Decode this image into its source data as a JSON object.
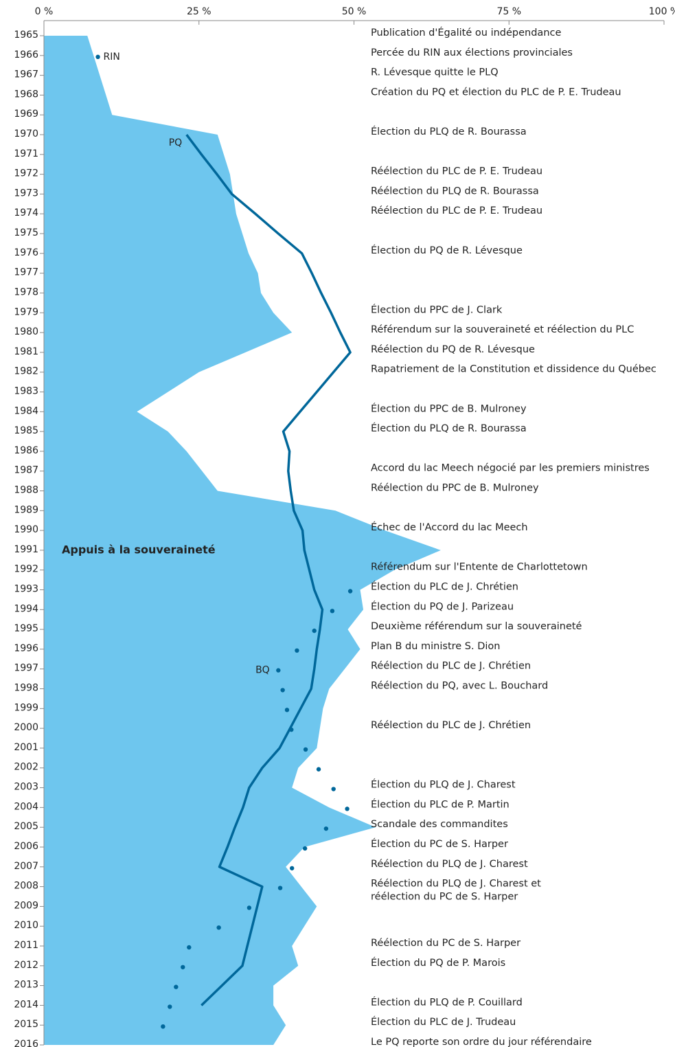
{
  "chart_data": {
    "type": "area",
    "orientation": "horizontal",
    "xlim": [
      0,
      100
    ],
    "xticks": [
      {
        "value": 0,
        "label": "0 %"
      },
      {
        "value": 25,
        "label": "25 %"
      },
      {
        "value": 50,
        "label": "50 %"
      },
      {
        "value": 75,
        "label": "75 %"
      },
      {
        "value": 100,
        "label": "100 %"
      }
    ],
    "ylim": [
      1965,
      2016
    ],
    "y": [
      1965,
      1966,
      1967,
      1968,
      1969,
      1970,
      1971,
      1972,
      1973,
      1974,
      1975,
      1976,
      1977,
      1978,
      1979,
      1980,
      1981,
      1982,
      1983,
      1984,
      1985,
      1986,
      1987,
      1988,
      1989,
      1990,
      1991,
      1992,
      1993,
      1994,
      1995,
      1996,
      1997,
      1998,
      1999,
      2000,
      2001,
      2002,
      2003,
      2004,
      2005,
      2006,
      2007,
      2008,
      2009,
      2010,
      2011,
      2012,
      2013,
      2014,
      2015,
      2016
    ],
    "yticks": [
      1965,
      1966,
      1967,
      1968,
      1969,
      1970,
      1971,
      1972,
      1973,
      1974,
      1975,
      1976,
      1977,
      1978,
      1979,
      1980,
      1981,
      1982,
      1983,
      1984,
      1985,
      1986,
      1987,
      1988,
      1989,
      1990,
      1991,
      1992,
      1993,
      1994,
      1995,
      1996,
      1997,
      1998,
      1999,
      2000,
      2001,
      2002,
      2003,
      2004,
      2005,
      2006,
      2007,
      2008,
      2009,
      2010,
      2011,
      2012,
      2013,
      2014,
      2015,
      2016
    ],
    "series": [
      {
        "name": "Appuis à la souveraineté",
        "kind": "area",
        "color": "#6ec6ee",
        "label_year": 1991,
        "values": [
          7,
          8,
          9,
          10,
          11,
          28,
          29,
          30,
          30.5,
          31,
          32,
          33,
          34.5,
          35,
          37,
          40,
          32.5,
          25,
          20,
          15,
          20,
          23,
          25.5,
          28,
          47,
          55,
          64,
          56.5,
          51,
          51.5,
          49,
          51,
          48.5,
          46,
          45,
          44.5,
          44,
          41,
          40,
          46,
          53.5,
          42,
          39,
          41.5,
          44,
          42,
          40,
          41,
          37,
          37,
          39,
          37
        ]
      },
      {
        "name": "PQ",
        "kind": "line",
        "color": "#00679a",
        "values": [
          null,
          null,
          null,
          null,
          null,
          23,
          25.4,
          27.9,
          30.3,
          34.1,
          37.8,
          41.6,
          43.2,
          44.7,
          46.3,
          47.8,
          49.4,
          46.7,
          44,
          41.3,
          38.6,
          39.6,
          39.4,
          39.8,
          40.3,
          41.7,
          42,
          42.8,
          43.6,
          44.9,
          44.5,
          44,
          43.6,
          43.1,
          41.4,
          39.7,
          38,
          35.2,
          33.1,
          32.1,
          30.8,
          29.6,
          28.3,
          35.2,
          34.4,
          33.6,
          32.8,
          32,
          28.7,
          25.4,
          null,
          null
        ]
      },
      {
        "name": "RIN",
        "kind": "dots",
        "color": "#00679a",
        "values": [
          null,
          8.7,
          null,
          null,
          null,
          null,
          null,
          null,
          null,
          null,
          null,
          null,
          null,
          null,
          null,
          null,
          null,
          null,
          null,
          null,
          null,
          null,
          null,
          null,
          null,
          null,
          null,
          null,
          null,
          null,
          null,
          null,
          null,
          null,
          null,
          null,
          null,
          null,
          null,
          null,
          null,
          null,
          null,
          null,
          null,
          null,
          null,
          null,
          null,
          null,
          null,
          null
        ]
      },
      {
        "name": "BQ",
        "kind": "dots",
        "color": "#00679a",
        "values": [
          null,
          null,
          null,
          null,
          null,
          null,
          null,
          null,
          null,
          null,
          null,
          null,
          null,
          null,
          null,
          null,
          null,
          null,
          null,
          null,
          null,
          null,
          null,
          null,
          null,
          null,
          null,
          null,
          49.4,
          46.5,
          43.6,
          40.8,
          37.8,
          38.5,
          39.2,
          39.9,
          42.2,
          44.3,
          46.7,
          48.9,
          45.5,
          42.1,
          40,
          38.1,
          33.1,
          28.2,
          23.4,
          22.4,
          21.3,
          20.3,
          19.2,
          null
        ]
      }
    ],
    "events": [
      {
        "year": 1965,
        "lines": [
          "Publication d'Égalité ou indépendance"
        ]
      },
      {
        "year": 1966,
        "lines": [
          "Percée du RIN aux élections provinciales"
        ]
      },
      {
        "year": 1967,
        "lines": [
          "R. Lévesque quitte le PLQ"
        ]
      },
      {
        "year": 1968,
        "lines": [
          "Création du PQ et élection du PLC de P. E. Trudeau"
        ]
      },
      {
        "year": 1970,
        "lines": [
          "Élection du PLQ de R. Bourassa"
        ]
      },
      {
        "year": 1972,
        "lines": [
          "Réélection du PLC de P. E. Trudeau"
        ]
      },
      {
        "year": 1973,
        "lines": [
          "Réélection du PLQ de R. Bourassa"
        ]
      },
      {
        "year": 1974,
        "lines": [
          "Réélection du PLC de P. E. Trudeau"
        ]
      },
      {
        "year": 1976,
        "lines": [
          "Élection du PQ de R. Lévesque"
        ]
      },
      {
        "year": 1979,
        "lines": [
          "Élection du PPC de J. Clark"
        ]
      },
      {
        "year": 1980,
        "lines": [
          "Référendum sur la souveraineté et réélection du PLC"
        ]
      },
      {
        "year": 1981,
        "lines": [
          "Réélection du PQ de R. Lévesque"
        ]
      },
      {
        "year": 1982,
        "lines": [
          "Rapatriement de la Constitution et dissidence du Québec"
        ]
      },
      {
        "year": 1984,
        "lines": [
          "Élection du PPC de B. Mulroney"
        ]
      },
      {
        "year": 1985,
        "lines": [
          "Élection du PLQ de R. Bourassa"
        ]
      },
      {
        "year": 1987,
        "lines": [
          "Accord du lac Meech négocié par les premiers ministres"
        ]
      },
      {
        "year": 1988,
        "lines": [
          "Réélection du PPC de B. Mulroney"
        ]
      },
      {
        "year": 1990,
        "lines": [
          "Échec de l'Accord du lac Meech"
        ]
      },
      {
        "year": 1992,
        "lines": [
          "Référendum sur l'Entente de Charlottetown"
        ]
      },
      {
        "year": 1993,
        "lines": [
          "Élection du PLC de J. Chrétien"
        ]
      },
      {
        "year": 1994,
        "lines": [
          "Élection du PQ de J. Parizeau"
        ]
      },
      {
        "year": 1995,
        "lines": [
          "Deuxième référendum sur la souveraineté"
        ]
      },
      {
        "year": 1996,
        "lines": [
          "Plan B du ministre S. Dion"
        ]
      },
      {
        "year": 1997,
        "lines": [
          "Réélection du PLC de J. Chrétien"
        ]
      },
      {
        "year": 1998,
        "lines": [
          "Réélection du PQ, avec L. Bouchard"
        ]
      },
      {
        "year": 2000,
        "lines": [
          "Réélection du PLC de J. Chrétien"
        ]
      },
      {
        "year": 2003,
        "lines": [
          "Élection du PLQ de J. Charest"
        ]
      },
      {
        "year": 2004,
        "lines": [
          "Élection du PLC de P. Martin"
        ]
      },
      {
        "year": 2005,
        "lines": [
          "Scandale des commandites"
        ]
      },
      {
        "year": 2006,
        "lines": [
          "Élection du PC de S. Harper"
        ]
      },
      {
        "year": 2007,
        "lines": [
          "Réélection du PLQ de J. Charest"
        ]
      },
      {
        "year": 2008,
        "lines": [
          "Réélection du PLQ de J. Charest et",
          "réélection du PC de S. Harper"
        ]
      },
      {
        "year": 2011,
        "lines": [
          "Réélection du PC de S. Harper"
        ]
      },
      {
        "year": 2012,
        "lines": [
          "Élection du PQ de P. Marois"
        ]
      },
      {
        "year": 2014,
        "lines": [
          "Élection du PLQ de P. Couillard"
        ]
      },
      {
        "year": 2015,
        "lines": [
          "Élection du PLC de J. Trudeau"
        ]
      },
      {
        "year": 2016,
        "lines": [
          "Le PQ reporte son ordre du jour référendaire"
        ]
      }
    ]
  }
}
